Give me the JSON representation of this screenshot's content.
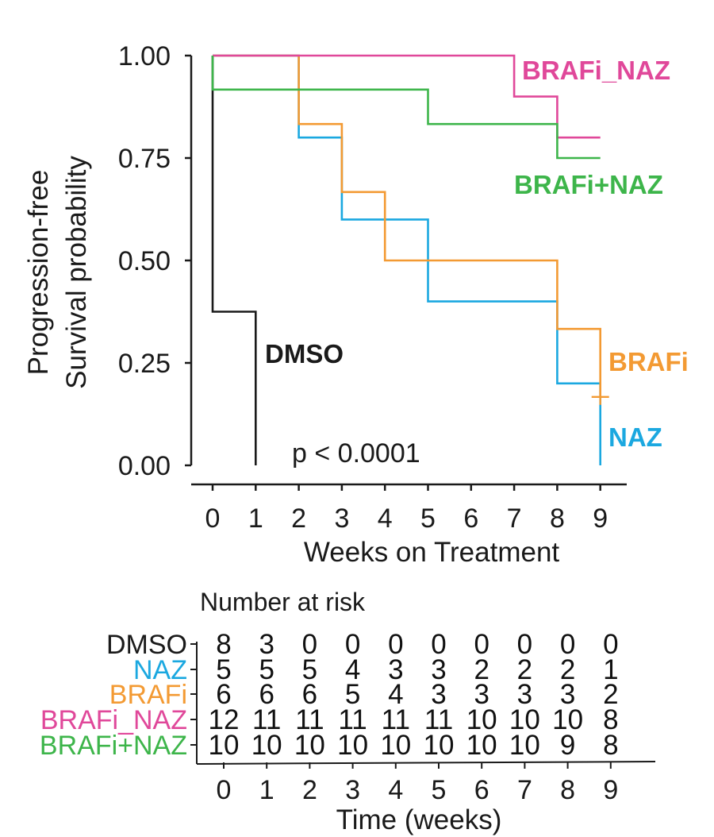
{
  "chart_data": {
    "type": "line",
    "subtype": "kaplan-meier step",
    "ylabel_line1": "Progression-free",
    "ylabel_line2": "Survival probability",
    "xlabel": "Weeks on Treatment",
    "xlim": [
      0,
      9
    ],
    "ylim": [
      0,
      1
    ],
    "x_ticks": [
      "0",
      "1",
      "2",
      "3",
      "4",
      "5",
      "6",
      "7",
      "8",
      "9"
    ],
    "y_ticks": [
      "0.00",
      "0.25",
      "0.50",
      "0.75",
      "1.00"
    ],
    "p_value_text": "p < 0.0001",
    "series": [
      {
        "name": "DMSO",
        "label": "DMSO",
        "color": "#1a1a1a",
        "times": [
          0,
          0,
          1,
          1
        ],
        "values": [
          1.0,
          0.375,
          0.375,
          0.0
        ]
      },
      {
        "name": "NAZ",
        "label": "NAZ",
        "color": "#1ba8e0",
        "times": [
          0,
          2,
          2,
          3,
          3,
          5,
          5,
          8,
          8,
          9,
          9
        ],
        "values": [
          1.0,
          1.0,
          0.8,
          0.8,
          0.6,
          0.6,
          0.4,
          0.4,
          0.2,
          0.2,
          0.0
        ]
      },
      {
        "name": "BRAFi",
        "label": "BRAFi",
        "color": "#f39a33",
        "times": [
          0,
          2,
          2,
          3,
          3,
          4,
          4,
          8,
          8,
          9,
          9
        ],
        "values": [
          1.0,
          1.0,
          0.833,
          0.833,
          0.667,
          0.667,
          0.5,
          0.5,
          0.333,
          0.333,
          0.167
        ],
        "censor_points": [
          [
            9,
            0.167
          ]
        ]
      },
      {
        "name": "BRAFi_NAZ",
        "label": "BRAFi_NAZ",
        "color": "#e0489a",
        "times": [
          0,
          7,
          7,
          8,
          8,
          9
        ],
        "values": [
          1.0,
          1.0,
          0.9,
          0.9,
          0.8,
          0.8
        ]
      },
      {
        "name": "BRAFi+NAZ",
        "label": "BRAFi+NAZ",
        "color": "#3db54a",
        "times": [
          0,
          0,
          5,
          5,
          8,
          8,
          9
        ],
        "values": [
          1.0,
          0.917,
          0.917,
          0.833,
          0.833,
          0.75,
          0.75
        ]
      }
    ],
    "risk_table": {
      "title": "Number at risk",
      "xlabel": "Time (weeks)",
      "x_ticks": [
        "0",
        "1",
        "2",
        "3",
        "4",
        "5",
        "6",
        "7",
        "8",
        "9"
      ],
      "rows": [
        {
          "label": "DMSO",
          "color": "#1a1a1a",
          "values": [
            "8",
            "3",
            "0",
            "0",
            "0",
            "0",
            "0",
            "0",
            "0",
            "0"
          ]
        },
        {
          "label": "NAZ",
          "color": "#1ba8e0",
          "values": [
            "5",
            "5",
            "5",
            "4",
            "3",
            "3",
            "2",
            "2",
            "2",
            "1"
          ]
        },
        {
          "label": "BRAFi",
          "color": "#f39a33",
          "values": [
            "6",
            "6",
            "6",
            "5",
            "4",
            "3",
            "3",
            "3",
            "3",
            "2"
          ]
        },
        {
          "label": "BRAFi_NAZ",
          "color": "#e0489a",
          "values": [
            "12",
            "11",
            "11",
            "11",
            "11",
            "11",
            "10",
            "10",
            "10",
            "8"
          ]
        },
        {
          "label": "BRAFi+NAZ",
          "color": "#3db54a",
          "values": [
            "10",
            "10",
            "10",
            "10",
            "10",
            "10",
            "10",
            "10",
            "9",
            "8"
          ]
        }
      ]
    }
  }
}
